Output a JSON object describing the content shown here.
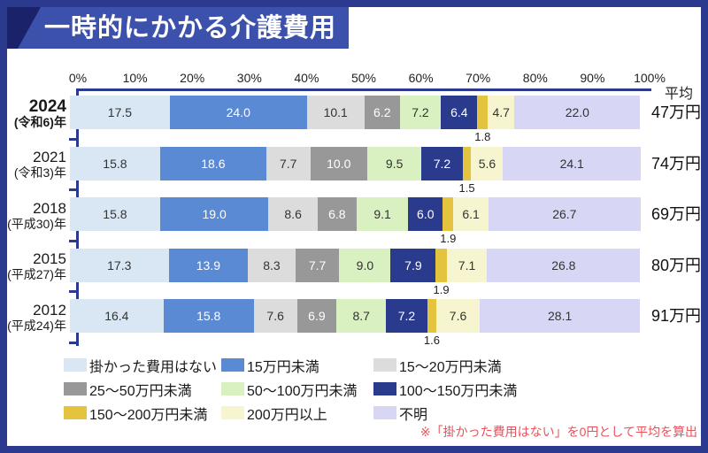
{
  "banner": {
    "title": "一時的にかかる介護費用"
  },
  "axis": {
    "ticks": [
      "0%",
      "10%",
      "20%",
      "30%",
      "40%",
      "50%",
      "60%",
      "70%",
      "80%",
      "90%",
      "100%"
    ],
    "average_header": "平均"
  },
  "chart_data": {
    "type": "bar",
    "stacked": true,
    "orientation": "horizontal",
    "unit": "percent",
    "xlim": [
      0,
      100
    ],
    "title": "一時的にかかる介護費用",
    "legend_position": "bottom",
    "series": [
      {
        "name": "掛かった費用はない",
        "color": "#d9e7f4",
        "text_color": "#333333",
        "label_below": false
      },
      {
        "name": "15万円未満",
        "color": "#5a8ad4",
        "text_color": "#ffffff",
        "label_below": false
      },
      {
        "name": "15～20万円未満",
        "color": "#dcdcdc",
        "text_color": "#333333",
        "label_below": false
      },
      {
        "name": "25～50万円未満",
        "color": "#989898",
        "text_color": "#ffffff",
        "label_below": false
      },
      {
        "name": "50～100万円未満",
        "color": "#d9f1c0",
        "text_color": "#333333",
        "label_below": false
      },
      {
        "name": "100～150万円未満",
        "color": "#2a3a8c",
        "text_color": "#ffffff",
        "label_below": false
      },
      {
        "name": "150～200万円未満",
        "color": "#e4c43e",
        "text_color": "#222222",
        "label_below": true
      },
      {
        "name": "200万円以上",
        "color": "#f7f5d0",
        "text_color": "#333333",
        "label_below": false
      },
      {
        "name": "不明",
        "color": "#d7d7f5",
        "text_color": "#333333",
        "label_below": false
      }
    ],
    "rows": [
      {
        "year": "2024",
        "era": "(令和6)年",
        "bold": true,
        "values": [
          17.5,
          24.0,
          10.1,
          6.2,
          7.2,
          6.4,
          1.8,
          4.7,
          22.0
        ],
        "average": "47万円"
      },
      {
        "year": "2021",
        "era": "(令和3)年",
        "bold": false,
        "values": [
          15.8,
          18.6,
          7.7,
          10.0,
          9.5,
          7.2,
          1.5,
          5.6,
          24.1
        ],
        "average": "74万円"
      },
      {
        "year": "2018",
        "era": "(平成30)年",
        "bold": false,
        "values": [
          15.8,
          19.0,
          8.6,
          6.8,
          9.1,
          6.0,
          1.9,
          6.1,
          26.7
        ],
        "average": "69万円"
      },
      {
        "year": "2015",
        "era": "(平成27)年",
        "bold": false,
        "values": [
          17.3,
          13.9,
          8.3,
          7.7,
          9.0,
          7.9,
          1.9,
          7.1,
          26.8
        ],
        "average": "80万円"
      },
      {
        "year": "2012",
        "era": "(平成24)年",
        "bold": false,
        "values": [
          16.4,
          15.8,
          7.6,
          6.9,
          8.7,
          7.2,
          1.6,
          7.6,
          28.1
        ],
        "average": "91万円"
      }
    ]
  },
  "footnote": "※「掛かった費用はない」を0円として平均を算出",
  "colors": {
    "frame": "#2b3a8f",
    "banner": "#3b51ab",
    "banner_corner": "#1a2369",
    "axis_line": "#2b3a8f",
    "footnote": "#e9515b"
  }
}
